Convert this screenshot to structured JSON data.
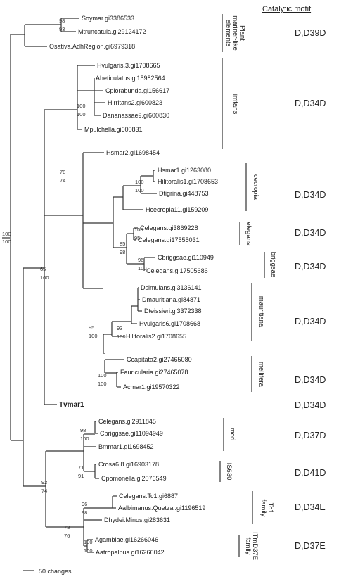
{
  "header": "Catalytic motif",
  "root_support": {
    "top": "100",
    "bottom": "100"
  },
  "taxa": [
    {
      "id": "t1",
      "label": "Soymar.gi3386533"
    },
    {
      "id": "t2",
      "label": "Mtruncatula.gi29124172"
    },
    {
      "id": "t3",
      "label": "Osativa.AdhRegion.gi6979318"
    },
    {
      "id": "t4",
      "label": "Hvulgaris.3.gi1708665"
    },
    {
      "id": "t5",
      "label": "Aheticulatus.gi15982564"
    },
    {
      "id": "t6",
      "label": "Cplorabunda.gi156617"
    },
    {
      "id": "t7",
      "label": "Hirritans2.gi600823"
    },
    {
      "id": "t8",
      "label": "Dananassae9.gi600830"
    },
    {
      "id": "t9",
      "label": "Mpulchella.gi600831"
    },
    {
      "id": "t10",
      "label": "Hsmar2.gi1698454"
    },
    {
      "id": "t11",
      "label": "Hsmar1.gi1263080"
    },
    {
      "id": "t12",
      "label": "Hilitoralis1.gi1708653"
    },
    {
      "id": "t13",
      "label": "Dtigrina.gi448753"
    },
    {
      "id": "t14",
      "label": "Hcecropia11.gi159209"
    },
    {
      "id": "t15",
      "label": "Celegans.gi3869228"
    },
    {
      "id": "t16",
      "label": "Celegans.gi17555031"
    },
    {
      "id": "t17",
      "label": "Cbriggsae.gi110949"
    },
    {
      "id": "t18",
      "label": "Celegans.gi17505686"
    },
    {
      "id": "t19",
      "label": "Dsimulans.gi3136141"
    },
    {
      "id": "t20",
      "label": "Dmauritiana.gi84871"
    },
    {
      "id": "t21",
      "label": "Dteissieri.gi3372338"
    },
    {
      "id": "t22",
      "label": "Hvulgaris6.gi1708668"
    },
    {
      "id": "t23",
      "label": "Hilitoralis2.gi1708655"
    },
    {
      "id": "t24",
      "label": "Ccapitata2.gi27465080"
    },
    {
      "id": "t25",
      "label": "Fauricularia.gi27465078"
    },
    {
      "id": "t26",
      "label": "Acmar1.gi19570322"
    },
    {
      "id": "t27",
      "label": "Tvmar1",
      "bold": true
    },
    {
      "id": "t28",
      "label": "Celegans.gi2911845"
    },
    {
      "id": "t29",
      "label": "Cbriggsae.gi11094949"
    },
    {
      "id": "t30",
      "label": "Bmmar1.gi1698452"
    },
    {
      "id": "t31",
      "label": "Crosa6.8.gi16903178"
    },
    {
      "id": "t32",
      "label": "Cpomonella.gi2076549"
    },
    {
      "id": "t33",
      "label": "Celegans.Tc1.gi6887"
    },
    {
      "id": "t34",
      "label": "Aalbimanus.Quetzal.gi1196519"
    },
    {
      "id": "t35",
      "label": "Dhydei.Minos.gi283631"
    },
    {
      "id": "t36",
      "label": "Agambiae.gi16266046"
    },
    {
      "id": "t37",
      "label": "Aatropalpus.gi16266042"
    }
  ],
  "supports": [
    {
      "id": "s1",
      "top": "98",
      "bottom": "93"
    },
    {
      "id": "s2",
      "top": "100",
      "bottom": "100"
    },
    {
      "id": "s3",
      "top": "78",
      "bottom": "74"
    },
    {
      "id": "s4",
      "top": "65",
      "bottom": "100"
    },
    {
      "id": "s5",
      "top": "100",
      "bottom": "100"
    },
    {
      "id": "s6",
      "top": "100",
      "bottom": "95"
    },
    {
      "id": "s7",
      "top": "96",
      "bottom": "100"
    },
    {
      "id": "s8",
      "top": "85",
      "bottom": "98"
    },
    {
      "id": "s9",
      "top": "93",
      "bottom": "100"
    },
    {
      "id": "s10",
      "top": "100",
      "bottom": "100"
    },
    {
      "id": "s11",
      "top": "95",
      "bottom": "100"
    },
    {
      "id": "s12",
      "top": "98",
      "bottom": "100"
    },
    {
      "id": "s13",
      "top": "71",
      "bottom": "91"
    },
    {
      "id": "s14",
      "top": "92",
      "bottom": "74"
    },
    {
      "id": "s15",
      "top": "73",
      "bottom": "76"
    },
    {
      "id": "s16",
      "top": "96",
      "bottom": "98"
    },
    {
      "id": "s17",
      "top": "100",
      "bottom": "100"
    }
  ],
  "clades": [
    {
      "id": "c1",
      "lines": [
        "Plant",
        "mariner-like",
        "elements"
      ]
    },
    {
      "id": "c2",
      "lines": [
        "irritans"
      ]
    },
    {
      "id": "c3",
      "lines": [
        "cecropia"
      ]
    },
    {
      "id": "c4",
      "lines": [
        "elegans"
      ]
    },
    {
      "id": "c5",
      "lines": [
        "briggsae"
      ]
    },
    {
      "id": "c6",
      "lines": [
        "mauritiana"
      ]
    },
    {
      "id": "c7",
      "lines": [
        "mellifera"
      ]
    },
    {
      "id": "c8",
      "lines": [
        "mori"
      ]
    },
    {
      "id": "c9",
      "lines": [
        "IS630"
      ]
    },
    {
      "id": "c10",
      "lines": [
        "Tc1",
        "family"
      ]
    },
    {
      "id": "c11",
      "lines": [
        "ITmD37E",
        "family"
      ]
    }
  ],
  "motifs": [
    {
      "id": "m1",
      "label": "D,D39D"
    },
    {
      "id": "m2",
      "label": "D,D34D"
    },
    {
      "id": "m3",
      "label": "D,D34D"
    },
    {
      "id": "m4",
      "label": "D,D34D"
    },
    {
      "id": "m5",
      "label": "D,D34D"
    },
    {
      "id": "m6",
      "label": "D,D34D"
    },
    {
      "id": "m7",
      "label": "D,D34D"
    },
    {
      "id": "m8",
      "label": "D,D34D"
    },
    {
      "id": "m9",
      "label": "D,D37D"
    },
    {
      "id": "m10",
      "label": "D,D41D"
    },
    {
      "id": "m11",
      "label": "D,D34E"
    },
    {
      "id": "m12",
      "label": "D,D37E"
    }
  ],
  "scale_label": "50 changes"
}
